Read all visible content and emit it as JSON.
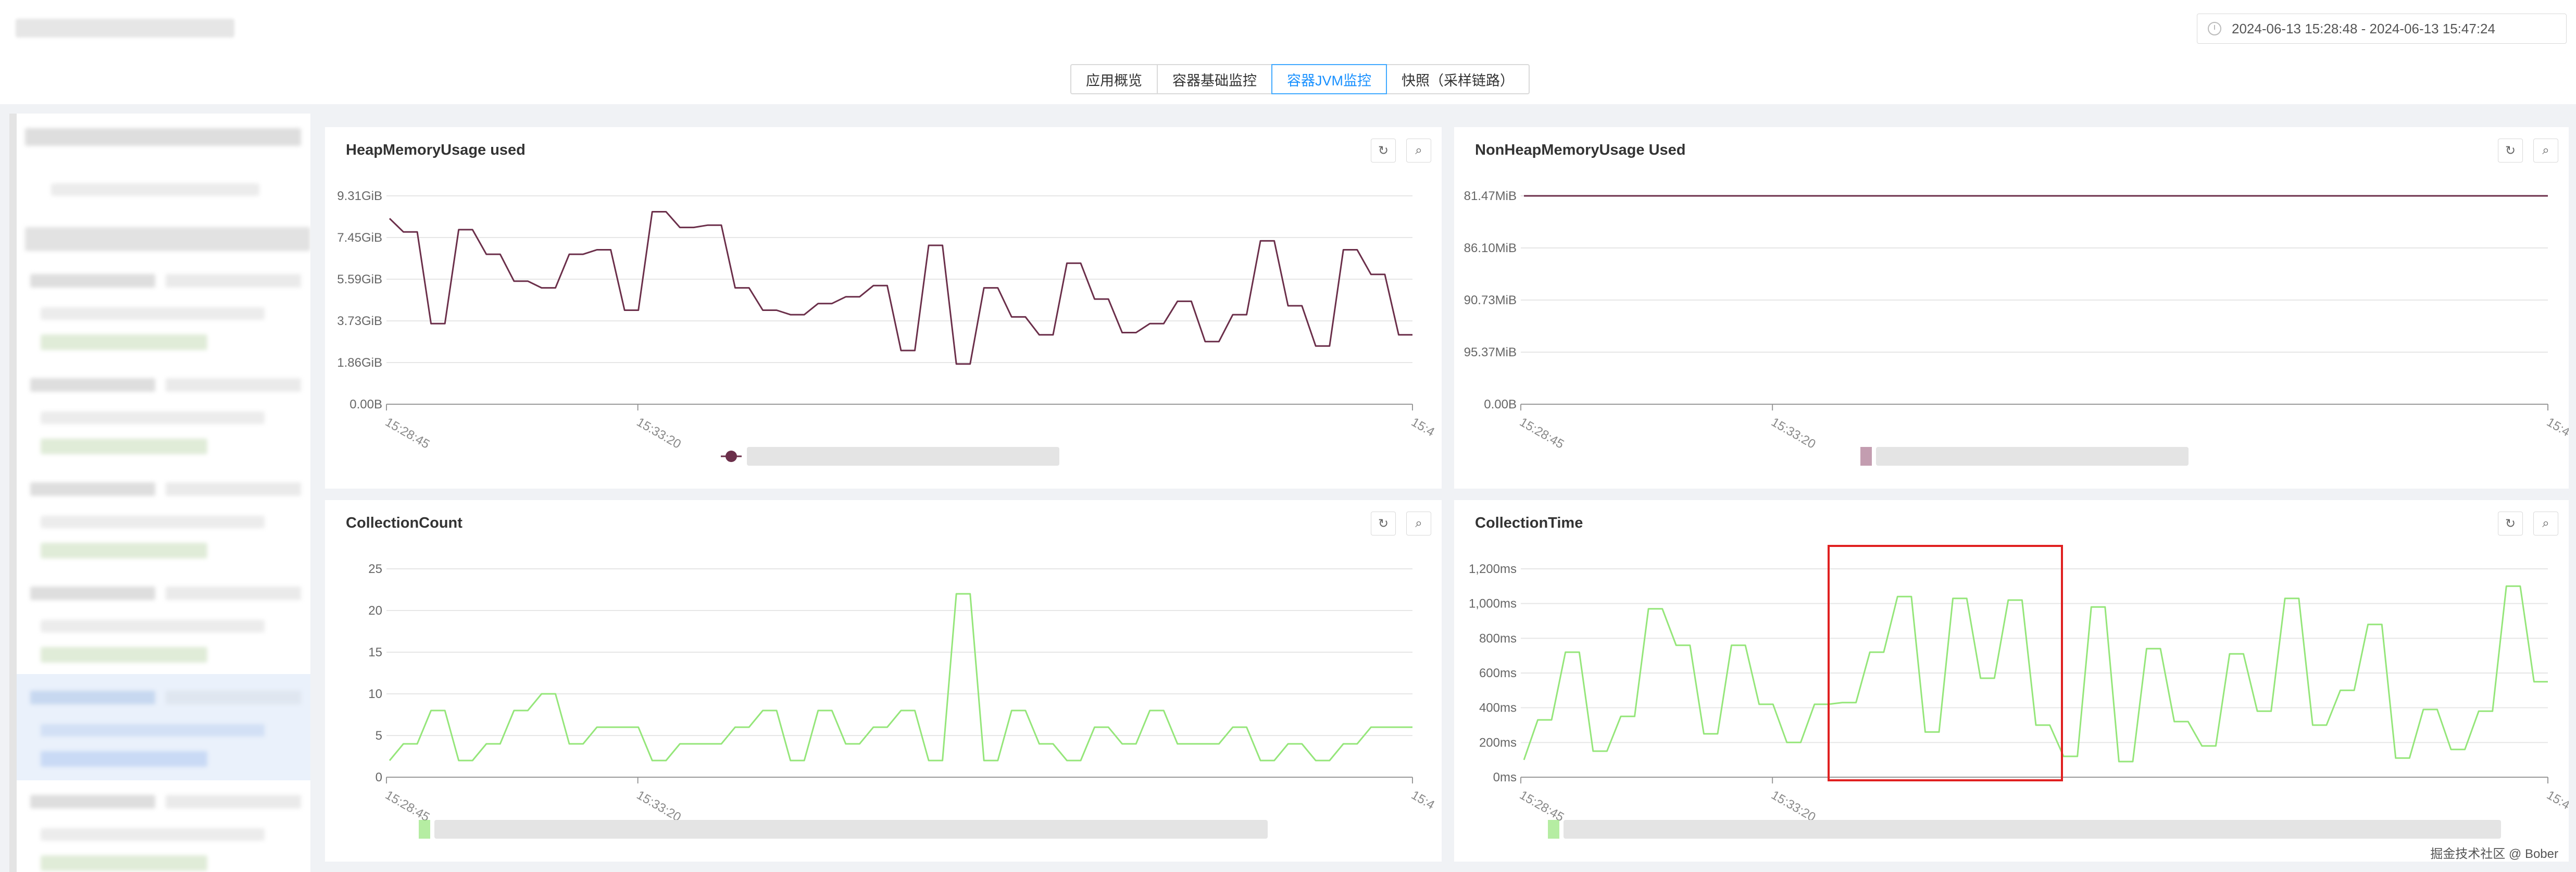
{
  "header": {
    "time_range": "2024-06-13 15:28:48  -  2024-06-13 15:47:24"
  },
  "tabs": [
    {
      "label": "应用概览",
      "active": false
    },
    {
      "label": "容器基础监控",
      "active": false
    },
    {
      "label": "容器JVM监控",
      "active": true
    },
    {
      "label": "快照（采样链路）",
      "active": false
    }
  ],
  "panels": {
    "heap": {
      "title": "HeapMemoryUsage used"
    },
    "nonheap": {
      "title": "NonHeapMemoryUsage Used"
    },
    "count": {
      "title": "CollectionCount"
    },
    "time": {
      "title": "CollectionTime"
    }
  },
  "icons": {
    "refresh": "refresh-icon",
    "zoom": "zoom-reset-icon",
    "time": "clock-icon"
  },
  "watermark": "掘金技术社区 @ Bober",
  "chart_data": [
    {
      "type": "line",
      "title": "HeapMemoryUsage used",
      "yticks": [
        "0.00B",
        "1.86GiB",
        "3.73GiB",
        "5.59GiB",
        "7.45GiB",
        "9.31GiB"
      ],
      "ylim": [
        0,
        9.31
      ],
      "xticks": [
        "15:28:45",
        "15:33:20",
        "15:4"
      ],
      "color": "#6b2f4a",
      "values": [
        8.3,
        7.7,
        7.7,
        3.6,
        3.6,
        7.8,
        7.8,
        6.7,
        6.7,
        5.5,
        5.5,
        5.2,
        5.2,
        6.7,
        6.7,
        6.9,
        6.9,
        4.2,
        4.2,
        8.6,
        8.6,
        7.9,
        7.9,
        8.0,
        8.0,
        5.2,
        5.2,
        4.2,
        4.2,
        4.0,
        4.0,
        4.5,
        4.5,
        4.8,
        4.8,
        5.3,
        5.3,
        2.4,
        2.4,
        7.1,
        7.1,
        1.8,
        1.8,
        5.2,
        5.2,
        3.9,
        3.9,
        3.1,
        3.1,
        6.3,
        6.3,
        4.7,
        4.7,
        3.2,
        3.2,
        3.6,
        3.6,
        4.6,
        4.6,
        2.8,
        2.8,
        4.0,
        4.0,
        7.3,
        7.3,
        4.4,
        4.4,
        2.6,
        2.6,
        6.9,
        6.9,
        5.8,
        5.8,
        3.1,
        3.1
      ]
    },
    {
      "type": "line",
      "title": "NonHeapMemoryUsage Used",
      "yticks": [
        "0.00B",
        "95.37MiB",
        "90.73MiB",
        "86.10MiB",
        "81.47MiB"
      ],
      "ylim": [
        0,
        4
      ],
      "xticks": [
        "15:28:45",
        "15:33:20",
        "15:4"
      ],
      "color": "#6b2f4a",
      "values": [
        4,
        4
      ]
    },
    {
      "type": "line",
      "title": "CollectionCount",
      "yticks": [
        "0",
        "5",
        "10",
        "15",
        "20",
        "25"
      ],
      "ylim": [
        0,
        25
      ],
      "xticks": [
        "15:28:45",
        "15:33:20",
        "15:4"
      ],
      "color": "#95e67a",
      "values": [
        2,
        4,
        4,
        8,
        8,
        2,
        2,
        4,
        4,
        8,
        8,
        10,
        10,
        4,
        4,
        6,
        6,
        6,
        6,
        2,
        2,
        4,
        4,
        4,
        4,
        6,
        6,
        8,
        8,
        2,
        2,
        8,
        8,
        4,
        4,
        6,
        6,
        8,
        8,
        2,
        2,
        22,
        22,
        2,
        2,
        8,
        8,
        4,
        4,
        2,
        2,
        6,
        6,
        4,
        4,
        8,
        8,
        4,
        4,
        4,
        4,
        6,
        6,
        2,
        2,
        4,
        4,
        2,
        2,
        4,
        4,
        6,
        6,
        6,
        6
      ]
    },
    {
      "type": "line",
      "title": "CollectionTime",
      "yticks": [
        "0ms",
        "200ms",
        "400ms",
        "600ms",
        "800ms",
        "1,000ms",
        "1,200ms"
      ],
      "ylim": [
        0,
        1200
      ],
      "xticks": [
        "15:28:45",
        "15:33:20",
        "15:4"
      ],
      "color": "#95e67a",
      "values": [
        100,
        330,
        330,
        720,
        720,
        150,
        150,
        350,
        350,
        970,
        970,
        760,
        760,
        250,
        250,
        760,
        760,
        420,
        420,
        200,
        200,
        420,
        420,
        430,
        430,
        720,
        720,
        1040,
        1040,
        260,
        260,
        1030,
        1030,
        570,
        570,
        1020,
        1020,
        300,
        300,
        120,
        120,
        980,
        980,
        90,
        90,
        740,
        740,
        320,
        320,
        180,
        180,
        710,
        710,
        380,
        380,
        1030,
        1030,
        300,
        300,
        500,
        500,
        880,
        880,
        110,
        110,
        390,
        390,
        160,
        160,
        380,
        380,
        1100,
        1100,
        550,
        550
      ]
    }
  ]
}
